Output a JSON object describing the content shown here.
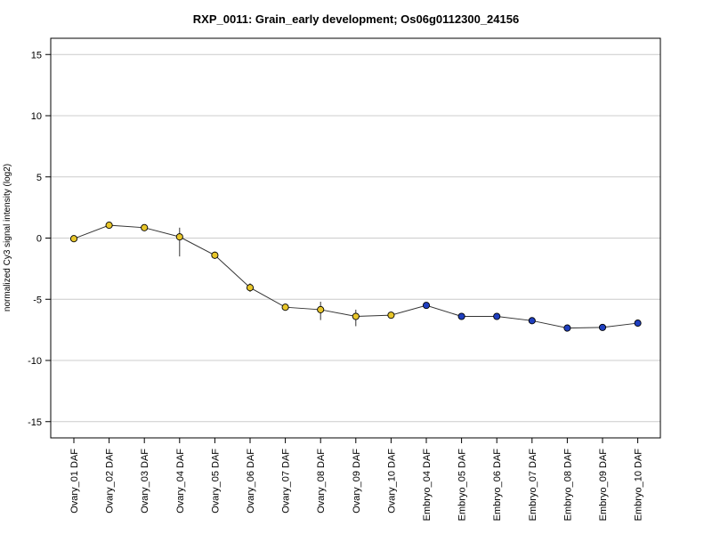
{
  "chart_data": {
    "type": "line",
    "title": "RXP_0011: Grain_early development; Os06g0112300_24156",
    "xlabel": "",
    "ylabel": "normalized Cy3 signal intensity (log2)",
    "ylim": [
      -16,
      16
    ],
    "yticks": [
      -15,
      -10,
      -5,
      0,
      5,
      10,
      15
    ],
    "grid": "horizontal",
    "categories": [
      "Ovary_01 DAF",
      "Ovary_02 DAF",
      "Ovary_03 DAF",
      "Ovary_04 DAF",
      "Ovary_05 DAF",
      "Ovary_06 DAF",
      "Ovary_07 DAF",
      "Ovary_08 DAF",
      "Ovary_09 DAF",
      "Ovary_10 DAF",
      "Embryo_04 DAF",
      "Embryo_05 DAF",
      "Embryo_06 DAF",
      "Embryo_07 DAF",
      "Embryo_08 DAF",
      "Embryo_09 DAF",
      "Embryo_10 DAF"
    ],
    "series": [
      {
        "values": [
          -0.05,
          1.05,
          0.85,
          0.1,
          -1.4,
          -4.05,
          -5.65,
          -5.85,
          -6.4,
          -6.3,
          -5.5,
          -6.4,
          -6.4,
          -6.75,
          -7.35,
          -7.3,
          -6.95
        ],
        "error_low": [
          -0.2,
          0.9,
          0.7,
          -1.5,
          -1.7,
          -4.4,
          -5.75,
          -6.7,
          -7.2,
          -6.45,
          -5.6,
          -6.5,
          -6.55,
          -6.9,
          -7.55,
          -7.45,
          -7.1
        ],
        "error_high": [
          0.1,
          1.2,
          1.0,
          0.85,
          -1.1,
          -3.7,
          -5.55,
          -5.2,
          -5.85,
          -6.15,
          -5.4,
          -6.3,
          -6.25,
          -6.6,
          -7.15,
          -7.15,
          -6.8
        ],
        "colors": [
          "#e8c62a",
          "#e8c62a",
          "#e8c62a",
          "#e8c62a",
          "#e8c62a",
          "#e8c62a",
          "#e8c62a",
          "#e8c62a",
          "#e8c62a",
          "#e8c62a",
          "#1f3fbf",
          "#1f3fbf",
          "#1f3fbf",
          "#1f3fbf",
          "#1f3fbf",
          "#1f3fbf",
          "#1f3fbf"
        ]
      }
    ],
    "colors": {
      "ovary_marker": "#e8c62a",
      "embryo_marker": "#1f3fbf",
      "line": "#333333",
      "grid": "#cccccc"
    }
  }
}
